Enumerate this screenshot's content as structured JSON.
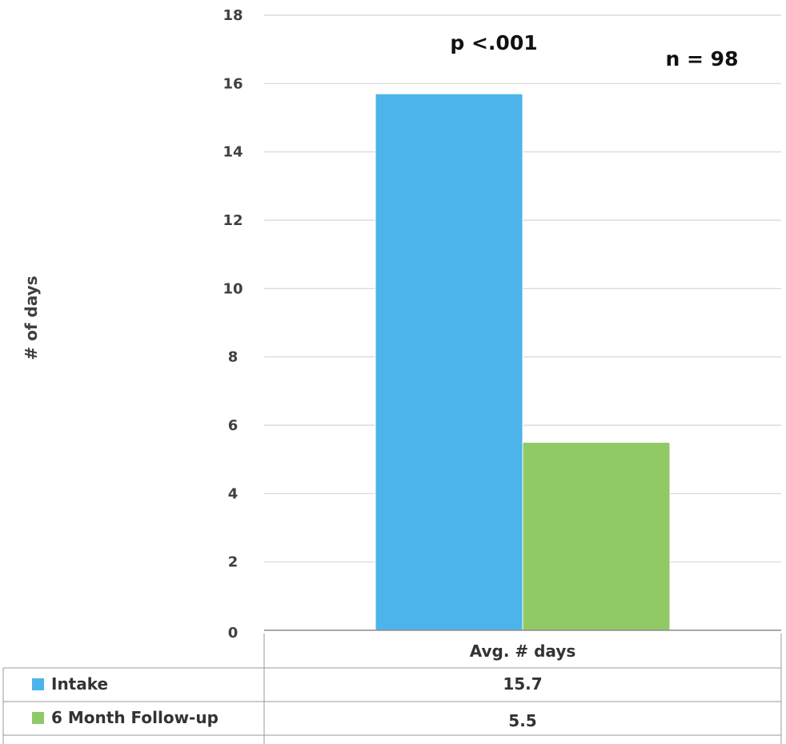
{
  "chart_data": {
    "type": "bar",
    "categories": [
      "Avg. #  days"
    ],
    "series": [
      {
        "name": "Intake",
        "values": [
          15.7
        ],
        "color": "#4DB4EB"
      },
      {
        "name": "6 Month Follow-up",
        "values": [
          5.5
        ],
        "color": "#91C967"
      }
    ],
    "ylabel": "# of days",
    "ylim": [
      0,
      18
    ],
    "yticks": [
      0,
      2,
      4,
      6,
      8,
      10,
      12,
      14,
      16,
      18
    ],
    "grid": true,
    "annotations": [
      "p <.001",
      "n = 98"
    ],
    "data_table": {
      "header": "Avg. #  days",
      "rows": [
        {
          "label": "Intake",
          "value": "15.7"
        },
        {
          "label": "6 Month Follow-up",
          "value": "5.5"
        }
      ]
    }
  }
}
